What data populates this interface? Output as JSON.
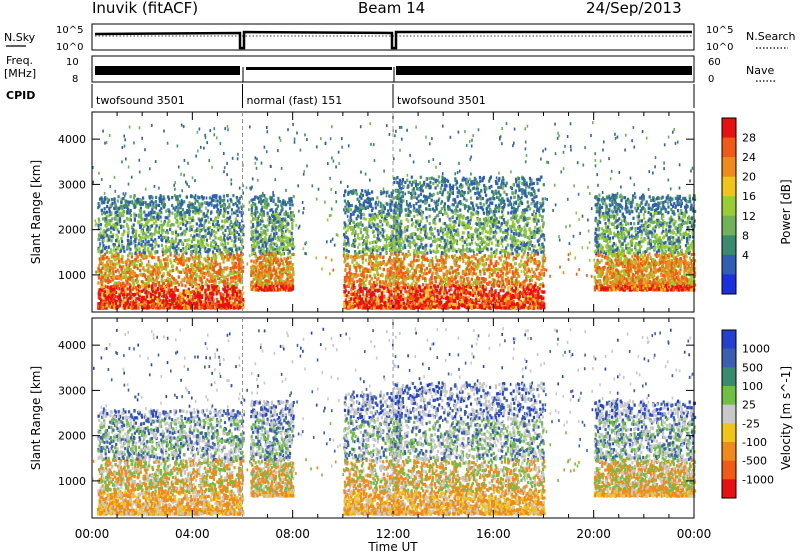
{
  "header": {
    "station": "Inuvik (fitACF)",
    "beam": "Beam 14",
    "date": "24/Sep/2013"
  },
  "top_panels": {
    "nsky_label": "N.Sky",
    "nsearch_label": "N.Search",
    "nsky_ticks": [
      "10^5",
      "10^0"
    ],
    "nsearch_ticks": [
      "10^5",
      "10^0"
    ],
    "freq_label_1": "Freq.",
    "freq_label_2": "[MHz]",
    "freq_ticks": [
      "10",
      "8"
    ],
    "nave_label": "Nave",
    "nave_ticks": [
      "60",
      "0"
    ],
    "cpid_label": "CPID",
    "cpid_segments": [
      {
        "label": "twofsound 3501",
        "start_h": 0,
        "end_h": 6.0
      },
      {
        "label": "normal (fast) 151",
        "start_h": 6.0,
        "end_h": 12.0
      },
      {
        "label": "twofsound 3501",
        "start_h": 12.0,
        "end_h": 24.0
      }
    ]
  },
  "x_axis": {
    "label": "Time UT",
    "ticks": [
      "00:00",
      "04:00",
      "08:00",
      "12:00",
      "16:00",
      "20:00",
      "00:00"
    ]
  },
  "chart_data": [
    {
      "type": "heatmap",
      "title": "",
      "xlabel": "Time UT",
      "ylabel": "Slant Range [km]",
      "xlim_hours": [
        0,
        24
      ],
      "ylim": [
        180,
        4600
      ],
      "yticks": [
        1000,
        2000,
        3000,
        4000
      ],
      "colorbar": {
        "label": "Power [dB]",
        "ticks": [
          "4",
          "8",
          "12",
          "16",
          "20",
          "24",
          "28"
        ],
        "colors": [
          "#1a2fe0",
          "#2e5fb4",
          "#3a8a70",
          "#6fb257",
          "#9acd32",
          "#f0c419",
          "#f08a1a",
          "#f05a14",
          "#e81010"
        ]
      },
      "features": [
        {
          "t_start": 0.2,
          "t_end": 6.0,
          "r_start": 300,
          "r_end": 2800,
          "level": "strong near 1000 km"
        },
        {
          "t_start": 6.3,
          "t_end": 8.0,
          "r_start": 700,
          "r_end": 2800,
          "level": "strong near 1300 km"
        },
        {
          "t_start": 10.0,
          "t_end": 12.3,
          "r_start": 300,
          "r_end": 2900,
          "level": "strong near 400 km"
        },
        {
          "t_start": 12.0,
          "t_end": 18.0,
          "r_start": 300,
          "r_end": 3200,
          "level": "strong near 1000 km"
        },
        {
          "t_start": 20.0,
          "t_end": 24.0,
          "r_start": 700,
          "r_end": 2800,
          "level": "strong near 1000 km"
        }
      ]
    },
    {
      "type": "heatmap",
      "title": "",
      "xlabel": "Time UT",
      "ylabel": "Slant Range [km]",
      "xlim_hours": [
        0,
        24
      ],
      "ylim": [
        180,
        4600
      ],
      "yticks": [
        1000,
        2000,
        3000,
        4000
      ],
      "colorbar": {
        "label": "Velocity [m s^-1]",
        "ticks": [
          "1000",
          "500",
          "100",
          "25",
          "-25",
          "-100",
          "-500",
          "-1000"
        ],
        "colors": [
          "#2340d0",
          "#3a5fb0",
          "#3a8a70",
          "#6fbe45",
          "#c8c8c8",
          "#f0c419",
          "#f08a1a",
          "#f05a14",
          "#e81010"
        ]
      },
      "features": [
        {
          "t_start": 0.2,
          "t_end": 6.0,
          "r_start": 300,
          "r_end": 2600,
          "level": "negative velocities (orange) near 500-1500 km"
        },
        {
          "t_start": 6.3,
          "t_end": 8.0,
          "r_start": 700,
          "r_end": 2800,
          "level": "positive velocities (green)"
        },
        {
          "t_start": 10.0,
          "t_end": 12.3,
          "r_start": 300,
          "r_end": 3000,
          "level": "mixed blue/green"
        },
        {
          "t_start": 12.0,
          "t_end": 18.0,
          "r_start": 300,
          "r_end": 3200,
          "level": "mixed orange/grey"
        },
        {
          "t_start": 20.0,
          "t_end": 24.0,
          "r_start": 700,
          "r_end": 2800,
          "level": "negative velocities (orange)"
        }
      ]
    }
  ]
}
